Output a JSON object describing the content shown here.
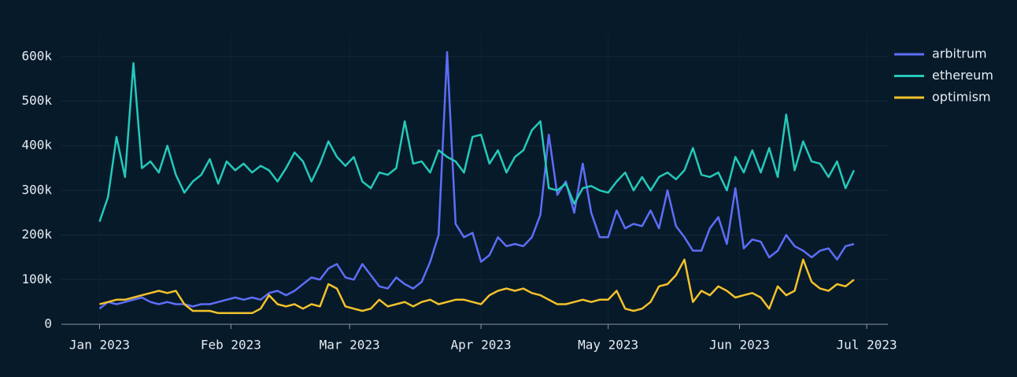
{
  "chart_data": {
    "type": "line",
    "x": [
      0,
      2,
      4,
      6,
      8,
      10,
      12,
      14,
      16,
      18,
      20,
      22,
      24,
      26,
      28,
      30,
      32,
      34,
      36,
      38,
      40,
      42,
      44,
      46,
      48,
      50,
      52,
      54,
      56,
      58,
      60,
      62,
      64,
      66,
      68,
      70,
      72,
      74,
      76,
      78,
      80,
      82,
      84,
      86,
      88,
      90,
      92,
      94,
      96,
      98,
      100,
      102,
      104,
      106,
      108,
      110,
      112,
      114,
      116,
      118,
      120,
      122,
      124,
      126,
      128,
      130,
      132,
      134,
      136,
      138,
      140,
      142,
      144,
      146,
      148,
      150,
      152,
      154,
      156,
      158,
      160,
      162,
      164,
      166,
      168,
      170,
      172,
      174,
      176,
      178
    ],
    "xlim": [
      -9,
      186
    ],
    "xticks": [
      {
        "value": 0,
        "label": "Jan 2023"
      },
      {
        "value": 31,
        "label": "Feb 2023"
      },
      {
        "value": 59,
        "label": "Mar 2023"
      },
      {
        "value": 90,
        "label": "Apr 2023"
      },
      {
        "value": 120,
        "label": "May 2023"
      },
      {
        "value": 151,
        "label": "Jun 2023"
      },
      {
        "value": 181,
        "label": "Jul 2023"
      }
    ],
    "ylim": [
      0,
      650000
    ],
    "yticks": [
      0,
      {
        "value": 100000,
        "label": "100k"
      },
      {
        "value": 200000,
        "label": "200k"
      },
      {
        "value": 300000,
        "label": "300k"
      },
      {
        "value": 400000,
        "label": "400k"
      },
      {
        "value": 500000,
        "label": "500k"
      },
      {
        "value": 600000,
        "label": "600k"
      }
    ],
    "grid": true,
    "legend": "right",
    "series": [
      {
        "name": "arbitrum",
        "color": "#5d6ef7",
        "values": [
          35000,
          50000,
          45000,
          50000,
          55000,
          60000,
          50000,
          45000,
          50000,
          45000,
          45000,
          40000,
          45000,
          45000,
          50000,
          55000,
          60000,
          55000,
          60000,
          55000,
          70000,
          75000,
          65000,
          75000,
          90000,
          105000,
          100000,
          125000,
          135000,
          105000,
          100000,
          135000,
          110000,
          85000,
          80000,
          105000,
          90000,
          80000,
          95000,
          140000,
          200000,
          610000,
          225000,
          195000,
          205000,
          140000,
          155000,
          195000,
          175000,
          180000,
          175000,
          195000,
          245000,
          425000,
          290000,
          320000,
          250000,
          360000,
          250000,
          195000,
          195000,
          255000,
          215000,
          225000,
          220000,
          255000,
          215000,
          300000,
          220000,
          195000,
          165000,
          165000,
          215000,
          240000,
          180000,
          305000,
          170000,
          190000,
          185000,
          150000,
          165000,
          200000,
          175000,
          165000,
          150000,
          165000,
          170000,
          145000,
          175000,
          180000
        ]
      },
      {
        "name": "ethereum",
        "color": "#25c9b9",
        "values": [
          230000,
          285000,
          420000,
          330000,
          585000,
          350000,
          365000,
          340000,
          400000,
          335000,
          295000,
          320000,
          335000,
          370000,
          315000,
          365000,
          345000,
          360000,
          340000,
          355000,
          345000,
          320000,
          350000,
          385000,
          365000,
          320000,
          360000,
          410000,
          375000,
          355000,
          375000,
          320000,
          305000,
          340000,
          335000,
          350000,
          455000,
          360000,
          365000,
          340000,
          390000,
          375000,
          365000,
          340000,
          420000,
          425000,
          360000,
          390000,
          340000,
          375000,
          390000,
          435000,
          455000,
          305000,
          300000,
          315000,
          270000,
          305000,
          310000,
          300000,
          295000,
          320000,
          340000,
          300000,
          330000,
          300000,
          330000,
          340000,
          325000,
          345000,
          395000,
          335000,
          330000,
          340000,
          300000,
          375000,
          340000,
          390000,
          340000,
          395000,
          330000,
          470000,
          345000,
          410000,
          365000,
          360000,
          330000,
          365000,
          305000,
          345000
        ]
      },
      {
        "name": "optimism",
        "color": "#f3c22b",
        "values": [
          45000,
          50000,
          55000,
          55000,
          60000,
          65000,
          70000,
          75000,
          70000,
          75000,
          45000,
          30000,
          30000,
          30000,
          25000,
          25000,
          25000,
          25000,
          25000,
          35000,
          65000,
          45000,
          40000,
          45000,
          35000,
          45000,
          40000,
          90000,
          80000,
          40000,
          35000,
          30000,
          35000,
          55000,
          40000,
          45000,
          50000,
          40000,
          50000,
          55000,
          45000,
          50000,
          55000,
          55000,
          50000,
          45000,
          65000,
          75000,
          80000,
          75000,
          80000,
          70000,
          65000,
          55000,
          45000,
          45000,
          50000,
          55000,
          50000,
          55000,
          55000,
          75000,
          35000,
          30000,
          35000,
          50000,
          85000,
          90000,
          110000,
          145000,
          50000,
          75000,
          65000,
          85000,
          75000,
          60000,
          65000,
          70000,
          60000,
          35000,
          85000,
          65000,
          75000,
          145000,
          95000,
          80000,
          75000,
          90000,
          85000,
          100000
        ]
      }
    ]
  }
}
